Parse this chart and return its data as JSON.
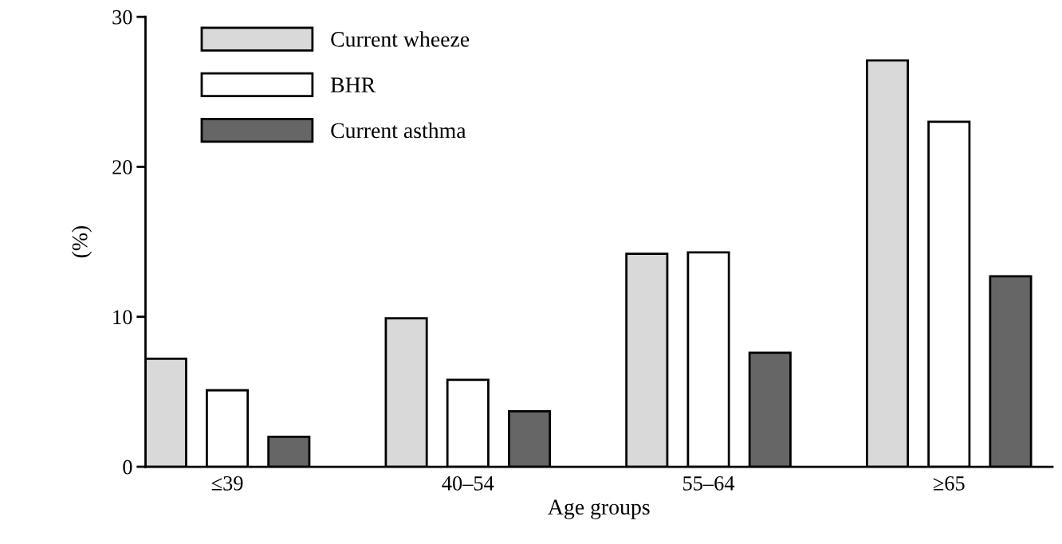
{
  "chart_data": {
    "type": "bar",
    "xlabel": "Age groups",
    "ylabel": "(%)",
    "categories": [
      "≤39",
      "40–54",
      "55–64",
      "≥65"
    ],
    "series": [
      {
        "name": "Current wheeze",
        "color": "#d9d9d9",
        "values": [
          7.2,
          9.9,
          14.2,
          27.1
        ]
      },
      {
        "name": "BHR",
        "color": "#ffffff",
        "values": [
          5.1,
          5.8,
          14.3,
          23.0
        ]
      },
      {
        "name": "Current asthma",
        "color": "#666666",
        "values": [
          2.0,
          3.7,
          7.6,
          12.7
        ]
      }
    ],
    "ylim": [
      0,
      30
    ],
    "yticks": [
      0,
      10,
      20,
      30
    ],
    "grid": false,
    "legend": "top left"
  }
}
